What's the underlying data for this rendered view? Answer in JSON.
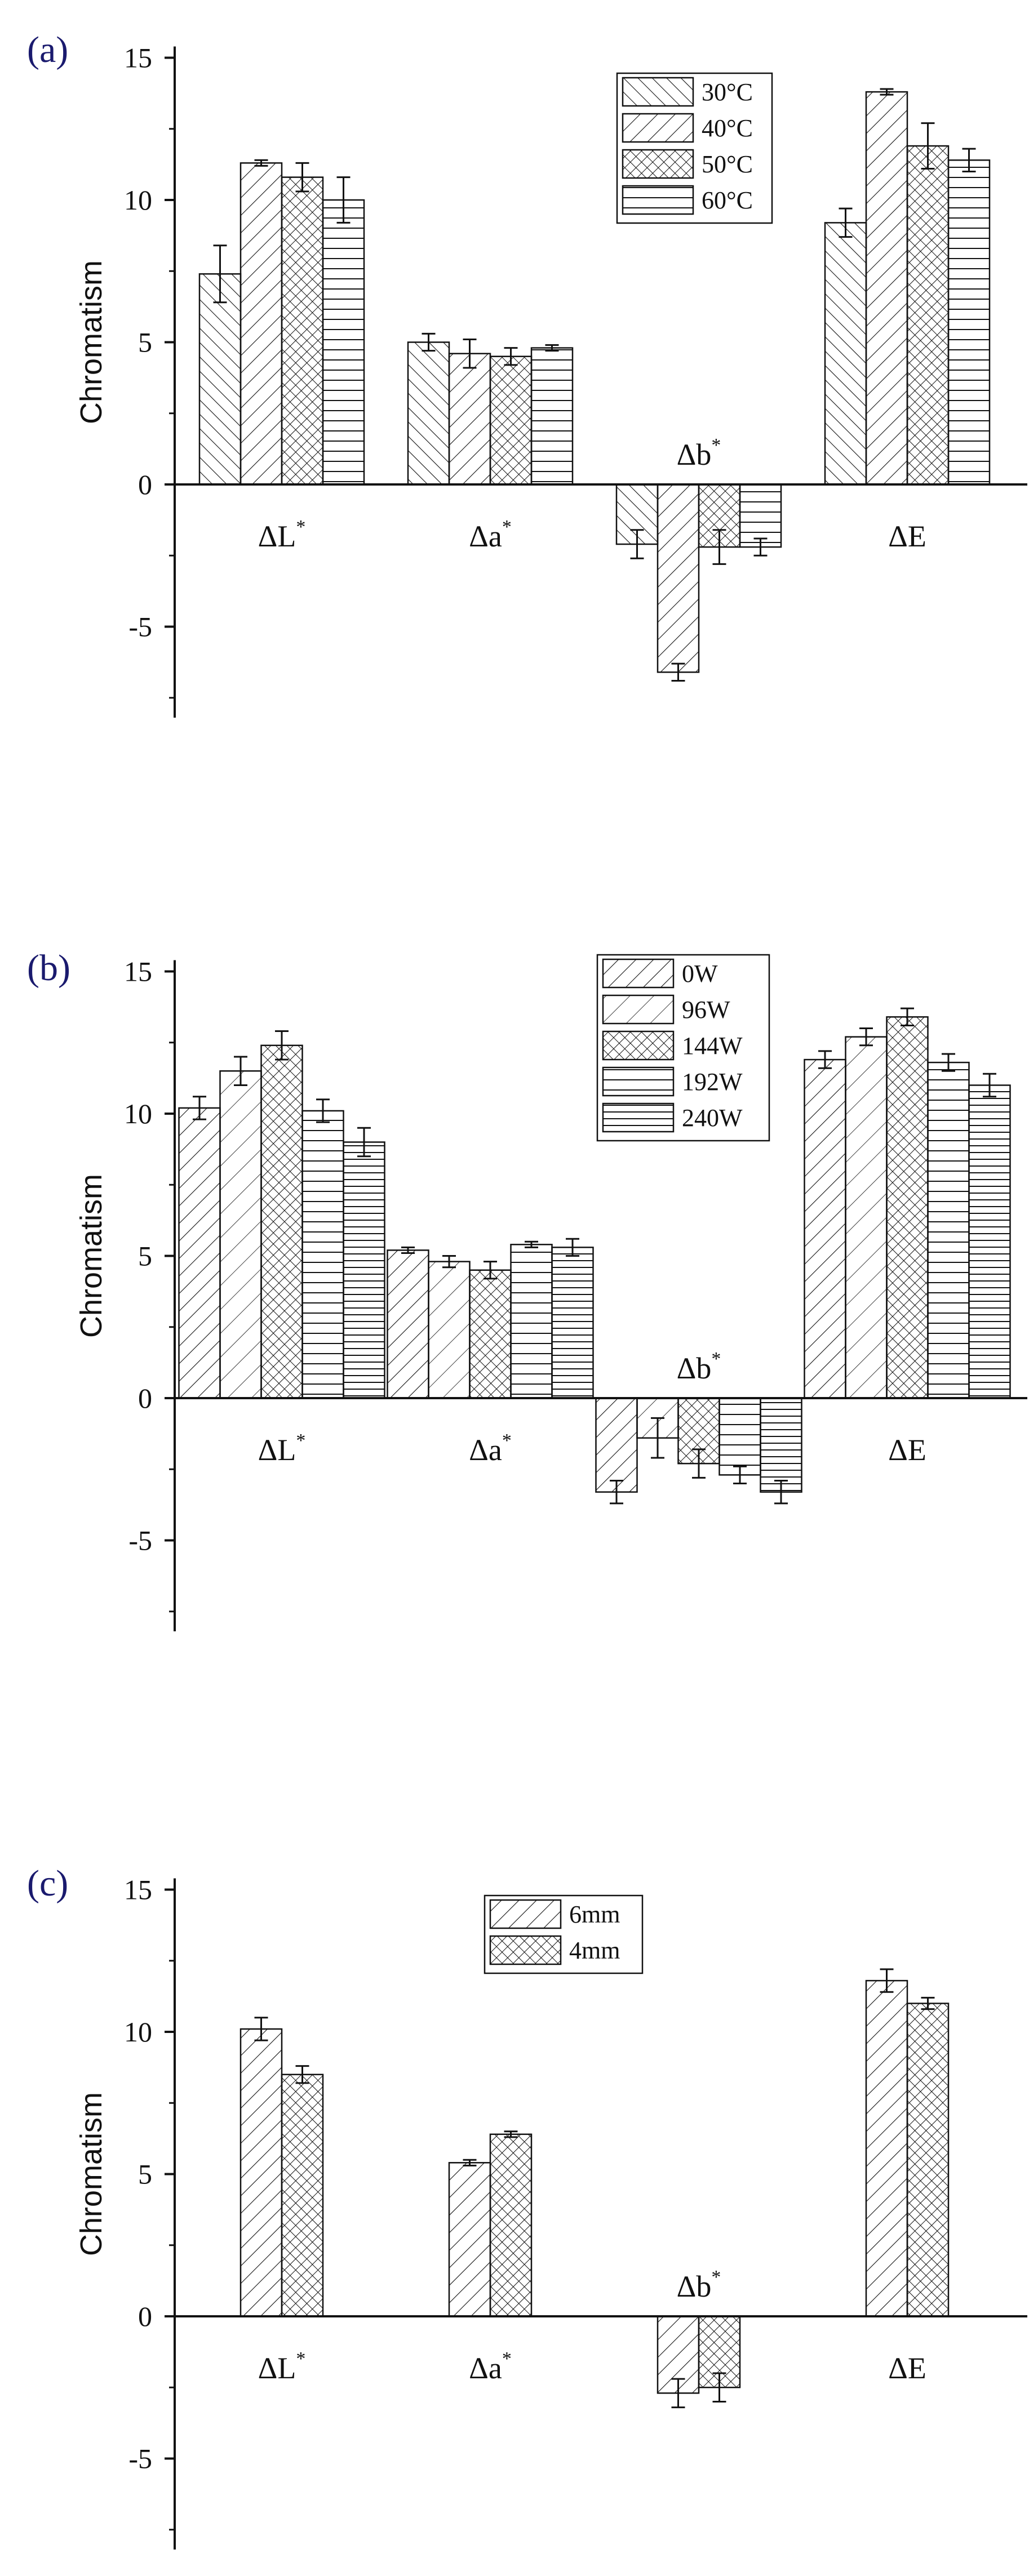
{
  "chart_data": [
    {
      "panel_label": "(a)",
      "type": "bar",
      "ylabel": "Chromatism",
      "ylim": [
        -8,
        15
      ],
      "yticks": [
        -5,
        0,
        5,
        10,
        15
      ],
      "categories": [
        {
          "base": "ΔL",
          "sup": "*"
        },
        {
          "base": "Δa",
          "sup": "*"
        },
        {
          "base": "Δb",
          "sup": "*"
        },
        {
          "base": "ΔE",
          "sup": ""
        }
      ],
      "series": [
        {
          "name": "30°C",
          "pattern": "back-diagonal",
          "values": [
            7.4,
            5.0,
            -2.1,
            9.2
          ],
          "errors": [
            1.0,
            0.3,
            0.5,
            0.5
          ]
        },
        {
          "name": "40°C",
          "pattern": "diagonal",
          "values": [
            11.3,
            4.6,
            -6.6,
            13.8
          ],
          "errors": [
            0.1,
            0.5,
            0.3,
            0.1
          ]
        },
        {
          "name": "50°C",
          "pattern": "crosshatch",
          "values": [
            10.8,
            4.5,
            -2.2,
            11.9
          ],
          "errors": [
            0.5,
            0.3,
            0.6,
            0.8
          ]
        },
        {
          "name": "60°C",
          "pattern": "horizontal",
          "values": [
            10.0,
            4.8,
            -2.2,
            11.4
          ],
          "errors": [
            0.8,
            0.1,
            0.3,
            0.4
          ]
        }
      ],
      "legend_position": "top-right",
      "grid": false
    },
    {
      "panel_label": "(b)",
      "type": "bar",
      "ylabel": "Chromatism",
      "ylim": [
        -8,
        15
      ],
      "yticks": [
        -5,
        0,
        5,
        10,
        15
      ],
      "categories": [
        {
          "base": "ΔL",
          "sup": "*"
        },
        {
          "base": "Δa",
          "sup": "*"
        },
        {
          "base": "Δb",
          "sup": "*"
        },
        {
          "base": "ΔE",
          "sup": ""
        }
      ],
      "series": [
        {
          "name": "0W",
          "pattern": "diagonal",
          "values": [
            10.2,
            5.2,
            -3.3,
            11.9
          ],
          "errors": [
            0.4,
            0.1,
            0.4,
            0.3
          ]
        },
        {
          "name": "96W",
          "pattern": "diagonal-fine",
          "values": [
            11.5,
            4.8,
            -1.4,
            12.7
          ],
          "errors": [
            0.5,
            0.2,
            0.7,
            0.3
          ]
        },
        {
          "name": "144W",
          "pattern": "crosshatch",
          "values": [
            12.4,
            4.5,
            -2.3,
            13.4
          ],
          "errors": [
            0.5,
            0.3,
            0.5,
            0.3
          ]
        },
        {
          "name": "192W",
          "pattern": "horizontal",
          "values": [
            10.1,
            5.4,
            -2.7,
            11.8
          ],
          "errors": [
            0.4,
            0.1,
            0.3,
            0.3
          ]
        },
        {
          "name": "240W",
          "pattern": "horizontal-dense",
          "values": [
            9.0,
            5.3,
            -3.3,
            11.0
          ],
          "errors": [
            0.5,
            0.3,
            0.4,
            0.4
          ]
        }
      ],
      "legend_position": "top-right",
      "grid": false
    },
    {
      "panel_label": "(c)",
      "type": "bar",
      "ylabel": "Chromatism",
      "ylim": [
        -8,
        15
      ],
      "yticks": [
        -5,
        0,
        5,
        10,
        15
      ],
      "categories": [
        {
          "base": "ΔL",
          "sup": "*"
        },
        {
          "base": "Δa",
          "sup": "*"
        },
        {
          "base": "Δb",
          "sup": "*"
        },
        {
          "base": "ΔE",
          "sup": ""
        }
      ],
      "series": [
        {
          "name": "6mm",
          "pattern": "diagonal",
          "values": [
            10.1,
            5.4,
            -2.7,
            11.8
          ],
          "errors": [
            0.4,
            0.1,
            0.5,
            0.4
          ]
        },
        {
          "name": "4mm",
          "pattern": "crosshatch",
          "values": [
            8.5,
            6.4,
            -2.5,
            11.0
          ],
          "errors": [
            0.3,
            0.1,
            0.5,
            0.2
          ]
        }
      ],
      "legend_position": "top-center",
      "grid": false
    }
  ]
}
